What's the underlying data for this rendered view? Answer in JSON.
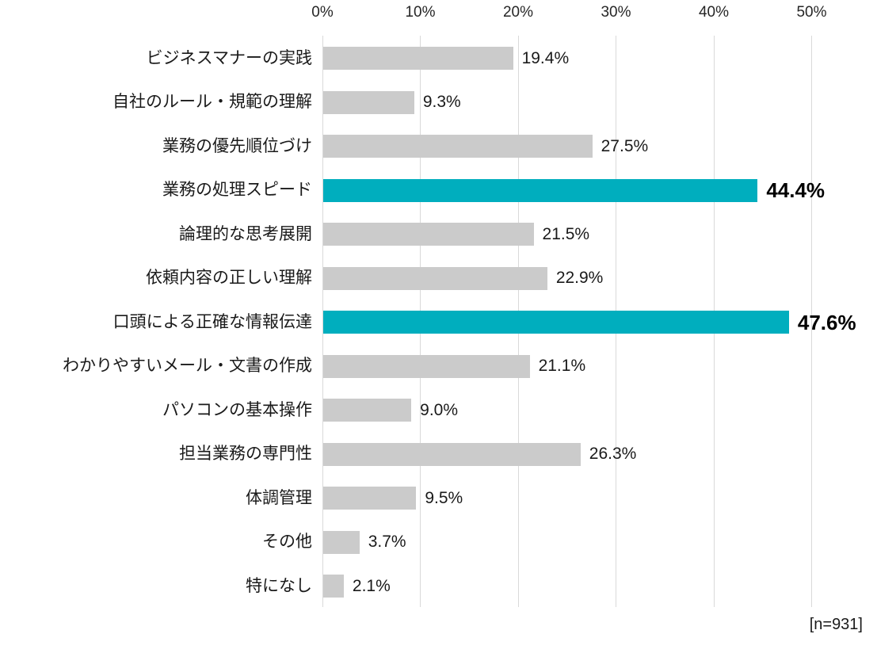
{
  "chart_data": {
    "type": "bar",
    "orientation": "horizontal",
    "title": "",
    "xlabel": "",
    "ylabel": "",
    "xlim": [
      0,
      50
    ],
    "grid": true,
    "axis_position": "top",
    "x_ticks": [
      {
        "value": 0,
        "label": "0%"
      },
      {
        "value": 10,
        "label": "10%"
      },
      {
        "value": 20,
        "label": "20%"
      },
      {
        "value": 30,
        "label": "30%"
      },
      {
        "value": 40,
        "label": "40%"
      },
      {
        "value": 50,
        "label": "50%"
      }
    ],
    "categories": [
      "ビジネスマナーの実践",
      "自社のルール・規範の理解",
      "業務の優先順位づけ",
      "業務の処理スピード",
      "論理的な思考展開",
      "依頼内容の正しい理解",
      "口頭による正確な情報伝達",
      "わかりやすいメール・文書の作成",
      "パソコンの基本操作",
      "担当業務の専門性",
      "体調管理",
      "その他",
      "特になし"
    ],
    "values": [
      19.4,
      9.3,
      27.5,
      44.4,
      21.5,
      22.9,
      47.6,
      21.1,
      9.0,
      26.3,
      9.5,
      3.7,
      2.1
    ],
    "value_labels": [
      "19.4%",
      "9.3%",
      "27.5%",
      "44.4%",
      "21.5%",
      "22.9%",
      "47.6%",
      "21.1%",
      "9.0%",
      "26.3%",
      "9.5%",
      "3.7%",
      "2.1%"
    ],
    "highlighted_indices": [
      3,
      6
    ],
    "note": "[n=931]",
    "colors": {
      "bar_default": "#CBCBCB",
      "bar_highlight": "#00AEBE",
      "gridline": "#D9D9D9",
      "text": "#1A1A1A"
    }
  }
}
